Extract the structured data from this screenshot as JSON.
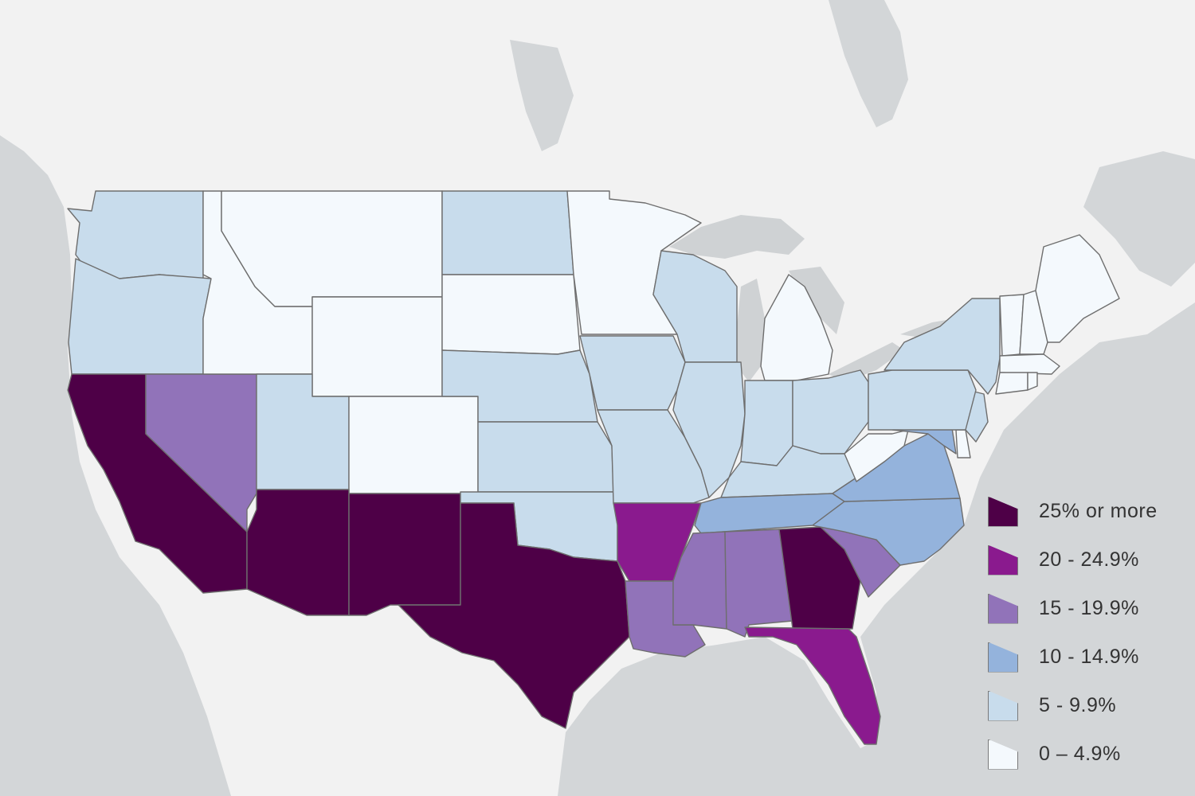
{
  "colors": {
    "ocean": "#d3d6d8",
    "land": "#f2f2f2",
    "lake": "#cfd2d4",
    "border": "#6e6e6e"
  },
  "legend": [
    {
      "label": "25% or more",
      "color": "#4e0047"
    },
    {
      "label": "20 - 24.9%",
      "color": "#8a1a8e"
    },
    {
      "label": "15 - 19.9%",
      "color": "#9173b9"
    },
    {
      "label": "10 - 14.9%",
      "color": "#94b3dc"
    },
    {
      "label": "5 - 9.9%",
      "color": "#c8dcec"
    },
    {
      "label": "0 – 4.9%",
      "color": "#f4f9fd"
    }
  ],
  "states": [
    {
      "name": "Washington",
      "class": 4
    },
    {
      "name": "Oregon",
      "class": 4
    },
    {
      "name": "California",
      "class": 0
    },
    {
      "name": "Nevada",
      "class": 2
    },
    {
      "name": "Idaho",
      "class": 5
    },
    {
      "name": "Montana",
      "class": 5
    },
    {
      "name": "Wyoming",
      "class": 5
    },
    {
      "name": "Utah",
      "class": 4
    },
    {
      "name": "Colorado",
      "class": 5
    },
    {
      "name": "Arizona",
      "class": 0
    },
    {
      "name": "New Mexico",
      "class": 0
    },
    {
      "name": "North Dakota",
      "class": 4
    },
    {
      "name": "South Dakota",
      "class": 5
    },
    {
      "name": "Nebraska",
      "class": 4
    },
    {
      "name": "Kansas",
      "class": 4
    },
    {
      "name": "Oklahoma",
      "class": 4
    },
    {
      "name": "Texas",
      "class": 0
    },
    {
      "name": "Minnesota",
      "class": 5
    },
    {
      "name": "Iowa",
      "class": 4
    },
    {
      "name": "Missouri",
      "class": 4
    },
    {
      "name": "Arkansas",
      "class": 1
    },
    {
      "name": "Louisiana",
      "class": 2
    },
    {
      "name": "Wisconsin",
      "class": 4
    },
    {
      "name": "Illinois",
      "class": 4
    },
    {
      "name": "Michigan",
      "class": 5
    },
    {
      "name": "Indiana",
      "class": 4
    },
    {
      "name": "Ohio",
      "class": 4
    },
    {
      "name": "Kentucky",
      "class": 4
    },
    {
      "name": "Tennessee",
      "class": 3
    },
    {
      "name": "Mississippi",
      "class": 2
    },
    {
      "name": "Alabama",
      "class": 2
    },
    {
      "name": "Georgia",
      "class": 0
    },
    {
      "name": "Florida",
      "class": 1
    },
    {
      "name": "South Carolina",
      "class": 2
    },
    {
      "name": "North Carolina",
      "class": 3
    },
    {
      "name": "Virginia",
      "class": 3
    },
    {
      "name": "West Virginia",
      "class": 5
    },
    {
      "name": "Maryland",
      "class": 3
    },
    {
      "name": "Delaware",
      "class": 5
    },
    {
      "name": "New Jersey",
      "class": 4
    },
    {
      "name": "Pennsylvania",
      "class": 4
    },
    {
      "name": "New York",
      "class": 4
    },
    {
      "name": "Vermont",
      "class": 5
    },
    {
      "name": "New Hampshire",
      "class": 5
    },
    {
      "name": "Maine",
      "class": 5
    },
    {
      "name": "Massachusetts",
      "class": 5
    },
    {
      "name": "Connecticut",
      "class": 5
    },
    {
      "name": "Rhode Island",
      "class": 5
    }
  ]
}
